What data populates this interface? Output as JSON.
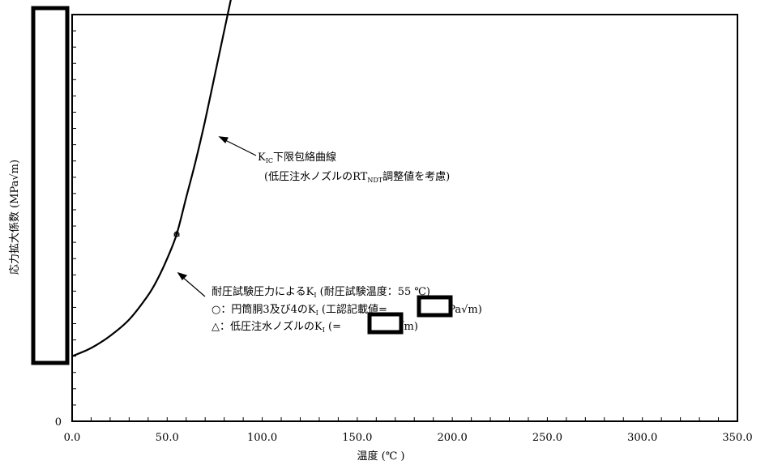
{
  "chart_data": {
    "type": "line",
    "xlabel": "温度 (℃ )",
    "ylabel": "応力拡大係数 (MPa√m)",
    "xlim": [
      0,
      350
    ],
    "x_ticks": [
      "0.0",
      "50.0",
      "100.0",
      "150.0",
      "200.0",
      "250.0",
      "300.0",
      "350.0"
    ],
    "y_ticks": [
      "0"
    ],
    "grid": false,
    "series": [
      {
        "name": "KIC下限包絡曲線",
        "x": [
          0,
          10,
          20,
          30,
          40,
          45,
          50,
          55,
          60,
          65,
          70,
          75,
          80,
          85
        ],
        "y": [
          0.16,
          0.18,
          0.21,
          0.25,
          0.31,
          0.35,
          0.4,
          0.46,
          0.55,
          0.64,
          0.74,
          0.85,
          0.96,
          1.07
        ]
      }
    ],
    "markers": [
      {
        "name": "耐圧試験圧力によるKI",
        "x": 55,
        "y": 0.46
      }
    ]
  },
  "annotations": {
    "curve_label_main": "K",
    "curve_label_sub": "IC",
    "curve_label_rest": "下限包絡曲線",
    "curve_note_open": "(低圧注水ノズルのRT",
    "curve_note_sub": "NDT",
    "curve_note_close": "調整値を考慮)",
    "test_line1_pre": "耐圧試験圧力によるK",
    "test_line1_sub": "I",
    "test_line1_post": " (耐圧試験温度：55 ℃)",
    "test_line2_pre": "○：円筒胴3及び4のK",
    "test_line2_sub": "I",
    "test_line2_mid": " (工認記載値=",
    "test_line2_post": "MPa√m)",
    "test_line3_pre": "△：低圧注水ノズルのK",
    "test_line3_sub": "I",
    "test_line3_mid": " (=",
    "test_line3_post": "MPa√m)"
  }
}
